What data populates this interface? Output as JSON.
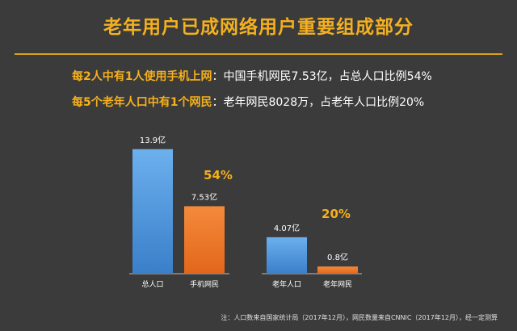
{
  "title": "老年用户已成网络用户重要组成部分",
  "line1": {
    "highlight": "每2人中有1人使用手机上网",
    "rest": "：中国手机网民7.53亿，占总人口比例54%"
  },
  "line2": {
    "highlight": "每5个老年人口中有1个网民",
    "rest": "：老年网民8028万，占老年人口比例20%"
  },
  "chart_data": {
    "type": "bar",
    "unit_suffix": "亿",
    "categories": [
      "总人口",
      "手机网民",
      "老年人口",
      "老年网民"
    ],
    "values": [
      13.9,
      7.53,
      4.07,
      0.8
    ],
    "value_labels": [
      "13.9亿",
      "7.53亿",
      "4.07亿",
      "0.8亿"
    ],
    "bar_colors": [
      "#4f97df",
      "#ef7523",
      "#4f97df",
      "#ef7523"
    ],
    "ratio_labels": [
      "54%",
      "20%"
    ],
    "ratio_color": "#f4b01e",
    "ylim": [
      0,
      15.5
    ]
  },
  "note": "注：人口数来自国家统计局（2017年12月），网民数量来自CNNIC（2017年12月），经一定测算"
}
